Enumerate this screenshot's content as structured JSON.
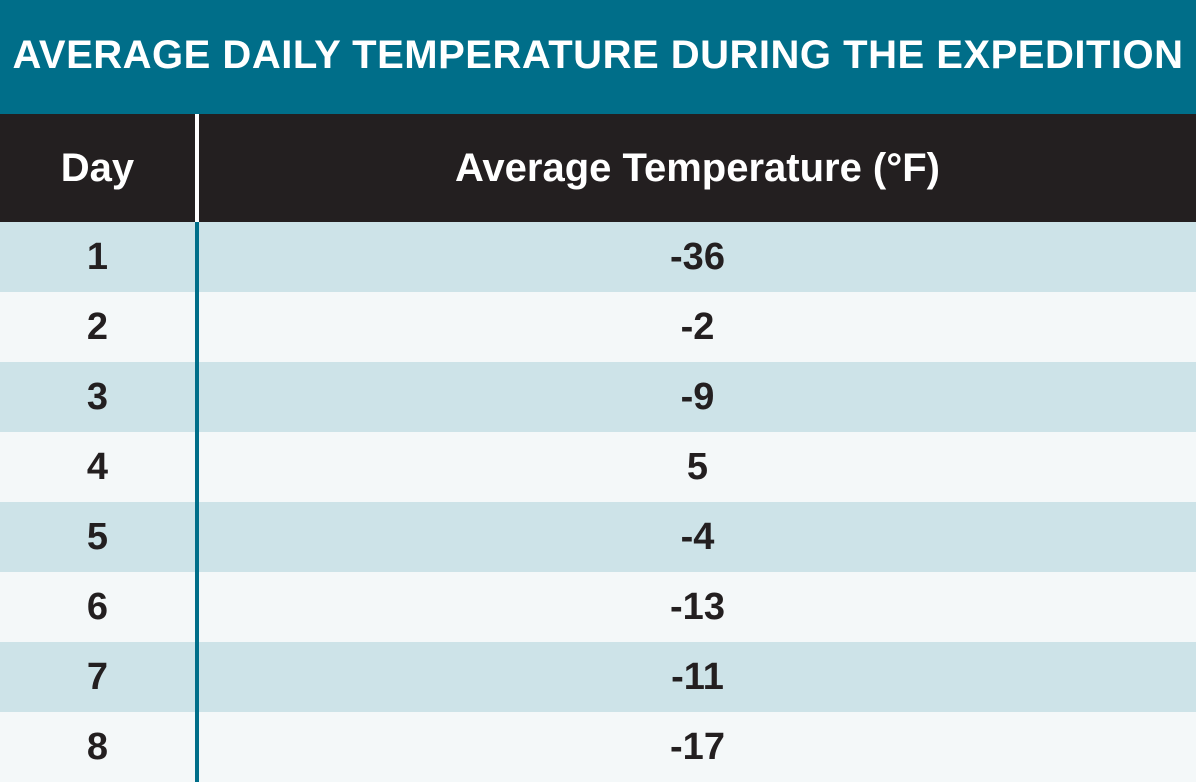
{
  "colors": {
    "title_background": "#006e89",
    "header_background": "#231f20",
    "row_odd": "#cde3e8",
    "row_even": "#f4f8f9",
    "divider": "#006e89"
  },
  "chart_data": {
    "type": "table",
    "title": "AVERAGE DAILY TEMPERATURE DURING THE EXPEDITION",
    "columns": [
      "Day",
      "Average Temperature (°F)"
    ],
    "rows": [
      [
        "1",
        "-36"
      ],
      [
        "2",
        "-2"
      ],
      [
        "3",
        "-9"
      ],
      [
        "4",
        "5"
      ],
      [
        "5",
        "-4"
      ],
      [
        "6",
        "-13"
      ],
      [
        "7",
        "-11"
      ],
      [
        "8",
        "-17"
      ]
    ]
  }
}
